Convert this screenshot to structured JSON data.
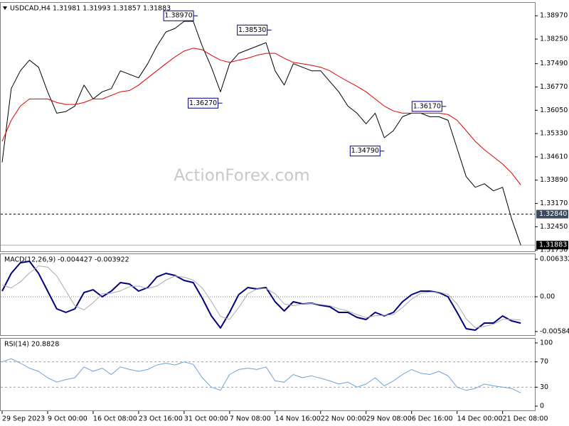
{
  "watermark": "ActionForex.com",
  "chart_data": [
    {
      "type": "line",
      "title": "USDCAD,H4 1.31981 1.31993 1.31857 1.31883",
      "ylim": [
        1.3169,
        1.3937
      ],
      "yticks": [
        {
          "value": 1.3897,
          "label": "1.38970"
        },
        {
          "value": 1.3825,
          "label": "1.38250"
        },
        {
          "value": 1.3749,
          "label": "1.37490"
        },
        {
          "value": 1.3677,
          "label": "1.36770"
        },
        {
          "value": 1.3605,
          "label": "1.36050"
        },
        {
          "value": 1.3533,
          "label": "1.35330"
        },
        {
          "value": 1.3461,
          "label": "1.34610"
        },
        {
          "value": 1.3389,
          "label": "1.33890"
        },
        {
          "value": 1.3317,
          "label": "1.33170"
        },
        {
          "value": 1.3245,
          "label": "1.32450"
        },
        {
          "value": 1.3173,
          "label": "1.31730"
        }
      ],
      "levels": [
        {
          "value": 1.3284,
          "label": "1.32840",
          "style": "dashed",
          "color": "#000000",
          "label_bg": "#3b4a5c"
        },
        {
          "value": 1.31883,
          "label": "1.31883",
          "style": "solid",
          "color": "#b0b0b0",
          "label_bg": "#000000"
        }
      ],
      "annotations": [
        {
          "x": 21.5,
          "value": 1.3897,
          "label": "1.38970"
        },
        {
          "x": 29.6,
          "value": 1.3853,
          "label": "1.38530"
        },
        {
          "x": 24.2,
          "value": 1.3627,
          "label": "1.36270"
        },
        {
          "x": 48.8,
          "value": 1.3617,
          "label": "1.36170"
        },
        {
          "x": 42.0,
          "value": 1.3479,
          "label": "1.34790"
        }
      ],
      "series": [
        {
          "color": "#000000",
          "width": 1,
          "values": [
            1.3444,
            1.3672,
            1.3727,
            1.376,
            1.3738,
            1.3662,
            1.3596,
            1.3601,
            1.3618,
            1.3683,
            1.364,
            1.3662,
            1.3672,
            1.3727,
            1.3716,
            1.3705,
            1.3749,
            1.3803,
            1.3847,
            1.3858,
            1.388,
            1.388,
            1.3803,
            1.3738,
            1.3662,
            1.3749,
            1.3781,
            1.3792,
            1.3803,
            1.3814,
            1.3727,
            1.3683,
            1.3749,
            1.3738,
            1.3727,
            1.3727,
            1.3694,
            1.3662,
            1.3618,
            1.3596,
            1.3563,
            1.3596,
            1.352,
            1.3542,
            1.3585,
            1.3596,
            1.3596,
            1.3585,
            1.3585,
            1.3574,
            1.3487,
            1.34,
            1.3367,
            1.3378,
            1.3356,
            1.3367,
            1.3269,
            1.3188
          ]
        },
        {
          "color": "#e00000",
          "width": 1,
          "values": [
            1.3509,
            1.3574,
            1.3618,
            1.364,
            1.364,
            1.364,
            1.3629,
            1.3623,
            1.3623,
            1.3629,
            1.364,
            1.364,
            1.3651,
            1.3662,
            1.3666,
            1.3683,
            1.3705,
            1.3727,
            1.3749,
            1.377,
            1.3788,
            1.3797,
            1.3792,
            1.3775,
            1.376,
            1.3753,
            1.376,
            1.3766,
            1.3775,
            1.3781,
            1.3781,
            1.3766,
            1.3753,
            1.3749,
            1.3744,
            1.3738,
            1.3727,
            1.371,
            1.3694,
            1.3679,
            1.3662,
            1.364,
            1.3618,
            1.3603,
            1.3596,
            1.3596,
            1.3596,
            1.3596,
            1.3596,
            1.3592,
            1.3574,
            1.3542,
            1.3509,
            1.3483,
            1.3461,
            1.3439,
            1.3411,
            1.3374
          ]
        }
      ]
    },
    {
      "type": "line",
      "title": "MACD(12,26,9) -0.004427 -0.003922",
      "ylim": [
        -0.00645,
        0.00717
      ],
      "yticks": [
        0.006332,
        {
          "value": 0,
          "label": "0.00"
        },
        -0.005847
      ],
      "levels": [
        {
          "value": 0,
          "style": "dotted",
          "color": "#808080"
        }
      ],
      "series": [
        {
          "color": "#000080",
          "width": 2,
          "values": [
            0.00096,
            0.00394,
            0.00573,
            0.00597,
            0.00394,
            0.00096,
            -0.00203,
            -0.00263,
            -0.00203,
            0.00072,
            0.00119,
            0,
            0.00096,
            0.00239,
            0.00215,
            0.00096,
            0.00155,
            0.00334,
            0.00394,
            0.00358,
            0.00275,
            0.00239,
            -0.00024,
            -0.00322,
            -0.00525,
            -0.00263,
            0.00036,
            0.00155,
            0.00131,
            0.00155,
            -0.00084,
            -0.00239,
            -0.00084,
            -0.00119,
            -0.00107,
            -0.00143,
            -0.00167,
            -0.00263,
            -0.00263,
            -0.00346,
            -0.00382,
            -0.00263,
            -0.00322,
            -0.00263,
            -0.00084,
            0.00036,
            0.00096,
            0.00096,
            0.00072,
            0,
            -0.00263,
            -0.00537,
            -0.00561,
            -0.00442,
            -0.00442,
            -0.00322,
            -0.00406,
            -0.004427
          ]
        },
        {
          "color": "#a9a9a9",
          "width": 1,
          "values": [
            0.002,
            0.0015,
            0.0025,
            0.004,
            0.0052,
            0.005,
            0.0035,
            0.001,
            -0.0015,
            -0.0022,
            -0.001,
            0.0005,
            0.0006,
            0.001,
            0.0017,
            0.0018,
            0.0014,
            0.0018,
            0.0028,
            0.0035,
            0.0033,
            0.0028,
            0.0015,
            -0.0008,
            -0.0033,
            -0.0038,
            -0.0018,
            0.0005,
            0.0013,
            0.0014,
            0.0005,
            -0.0012,
            -0.0015,
            -0.0012,
            -0.0011,
            -0.0013,
            -0.0015,
            -0.002,
            -0.0024,
            -0.003,
            -0.0035,
            -0.0032,
            -0.0031,
            -0.003,
            -0.0018,
            -0.0004,
            0.0006,
            0.0008,
            0.0008,
            0.0004,
            -0.0012,
            -0.0037,
            -0.0052,
            -0.005,
            -0.0046,
            -0.0038,
            -0.0038,
            -0.003922
          ]
        }
      ]
    },
    {
      "type": "line",
      "title": "RSI(14) 20.8828",
      "ylim": [
        -6.7,
        106.7
      ],
      "yticks": [
        100,
        70,
        30,
        0
      ],
      "levels": [
        {
          "value": 70,
          "style": "dashed",
          "color": "#a0a0a0"
        },
        {
          "value": 30,
          "style": "dashed",
          "color": "#a0a0a0"
        }
      ],
      "xlim": [
        0,
        58
      ],
      "xticks": [
        {
          "value": 0,
          "label": "29 Sep 2023"
        },
        {
          "value": 5,
          "label": "9 Oct 00:00"
        },
        {
          "value": 10,
          "label": "16 Oct 08:00"
        },
        {
          "value": 15,
          "label": "23 Oct 16:00"
        },
        {
          "value": 20,
          "label": "31 Oct 00:00"
        },
        {
          "value": 25,
          "label": "7 Nov 08:00"
        },
        {
          "value": 30,
          "label": "14 Nov 16:00"
        },
        {
          "value": 35,
          "label": "22 Nov 00:00"
        },
        {
          "value": 40,
          "label": "29 Nov 08:00"
        },
        {
          "value": 45,
          "label": "6 Dec 16:00"
        },
        {
          "value": 50,
          "label": "14 Dec 00:00"
        },
        {
          "value": 55,
          "label": "21 Dec 08:00"
        }
      ],
      "series": [
        {
          "color": "#6ca0dc",
          "width": 1,
          "values": [
            70,
            75,
            68,
            60,
            55,
            45,
            38,
            42,
            45,
            62,
            55,
            60,
            50,
            62,
            58,
            55,
            58,
            65,
            68,
            65,
            70,
            66,
            45,
            30,
            25,
            50,
            58,
            60,
            58,
            62,
            40,
            38,
            50,
            45,
            48,
            44,
            40,
            35,
            38,
            30,
            35,
            45,
            32,
            40,
            50,
            58,
            52,
            50,
            55,
            48,
            30,
            25,
            28,
            35,
            32,
            30,
            28,
            20.8828
          ]
        }
      ]
    }
  ]
}
